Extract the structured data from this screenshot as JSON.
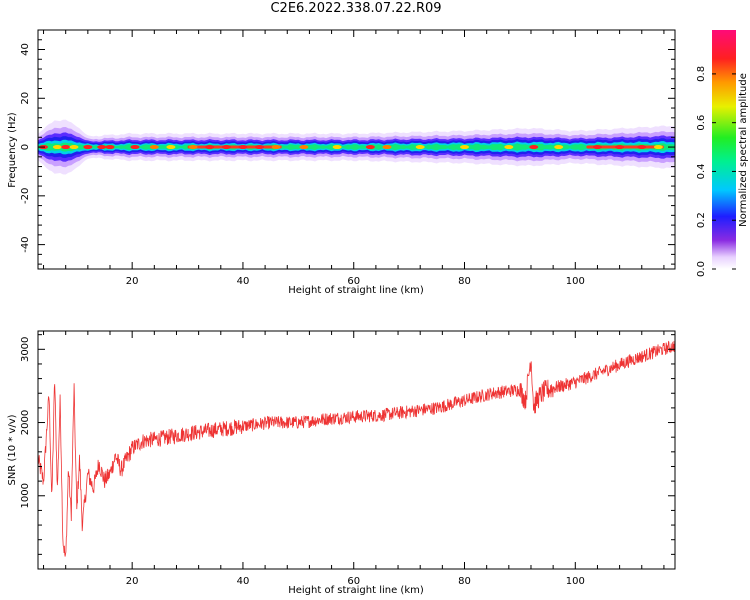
{
  "title": "C2E6.2022.338.07.22.R09",
  "chart_data": [
    {
      "type": "heatmap",
      "xlabel": "Height of straight line (km)",
      "ylabel": "Frequency (Hz)",
      "xlim": [
        3,
        118
      ],
      "ylim": [
        -50,
        48
      ],
      "xticks": [
        20,
        40,
        60,
        80,
        100
      ],
      "yticks": [
        -40,
        -20,
        0,
        20,
        40
      ],
      "colorbar": {
        "label": "Normalized spectral amplitude",
        "range": [
          0,
          0.98
        ],
        "ticks": [
          "0.0",
          "0.2",
          "0.4",
          "0.6",
          "0.8"
        ]
      },
      "band": {
        "center_hz": 0,
        "halfwidth_hz": [
          [
            3,
            2.5
          ],
          [
            6,
            5
          ],
          [
            8,
            5
          ],
          [
            10,
            4
          ],
          [
            12,
            2
          ],
          [
            20,
            2.5
          ],
          [
            40,
            2.5
          ],
          [
            60,
            2.5
          ],
          [
            80,
            3
          ],
          [
            92,
            3.5
          ],
          [
            100,
            3
          ],
          [
            118,
            4
          ]
        ]
      }
    },
    {
      "type": "line",
      "xlabel": "Height of straight line (km)",
      "ylabel": "SNR (10 * v/v)",
      "xlim": [
        3,
        118
      ],
      "ylim": [
        0,
        3250
      ],
      "xticks": [
        20,
        40,
        60,
        80,
        100
      ],
      "yticks": [
        1000,
        2000,
        3000
      ],
      "color": "#ee3333",
      "series": [
        {
          "x": [
            3,
            4,
            5,
            5.5,
            6,
            6.5,
            7,
            7.5,
            8,
            8.5,
            9,
            9.5,
            10,
            10.5,
            11,
            12,
            13,
            14,
            15,
            16,
            17,
            18,
            19,
            20,
            22,
            25,
            30,
            35,
            40,
            45,
            50,
            55,
            60,
            65,
            70,
            75,
            80,
            85,
            90,
            91,
            92,
            92.5,
            93,
            94,
            95,
            100,
            105,
            110,
            115,
            118
          ],
          "y": [
            1500,
            1200,
            2400,
            900,
            2600,
            1100,
            2300,
            400,
            100,
            1400,
            700,
            2500,
            800,
            1500,
            600,
            1300,
            1100,
            1450,
            1200,
            1300,
            1550,
            1350,
            1500,
            1650,
            1750,
            1780,
            1850,
            1900,
            1950,
            2000,
            2000,
            2050,
            2080,
            2100,
            2150,
            2200,
            2300,
            2400,
            2450,
            2300,
            2900,
            2200,
            2300,
            2400,
            2450,
            2550,
            2700,
            2850,
            2980,
            3050
          ]
        }
      ]
    }
  ]
}
